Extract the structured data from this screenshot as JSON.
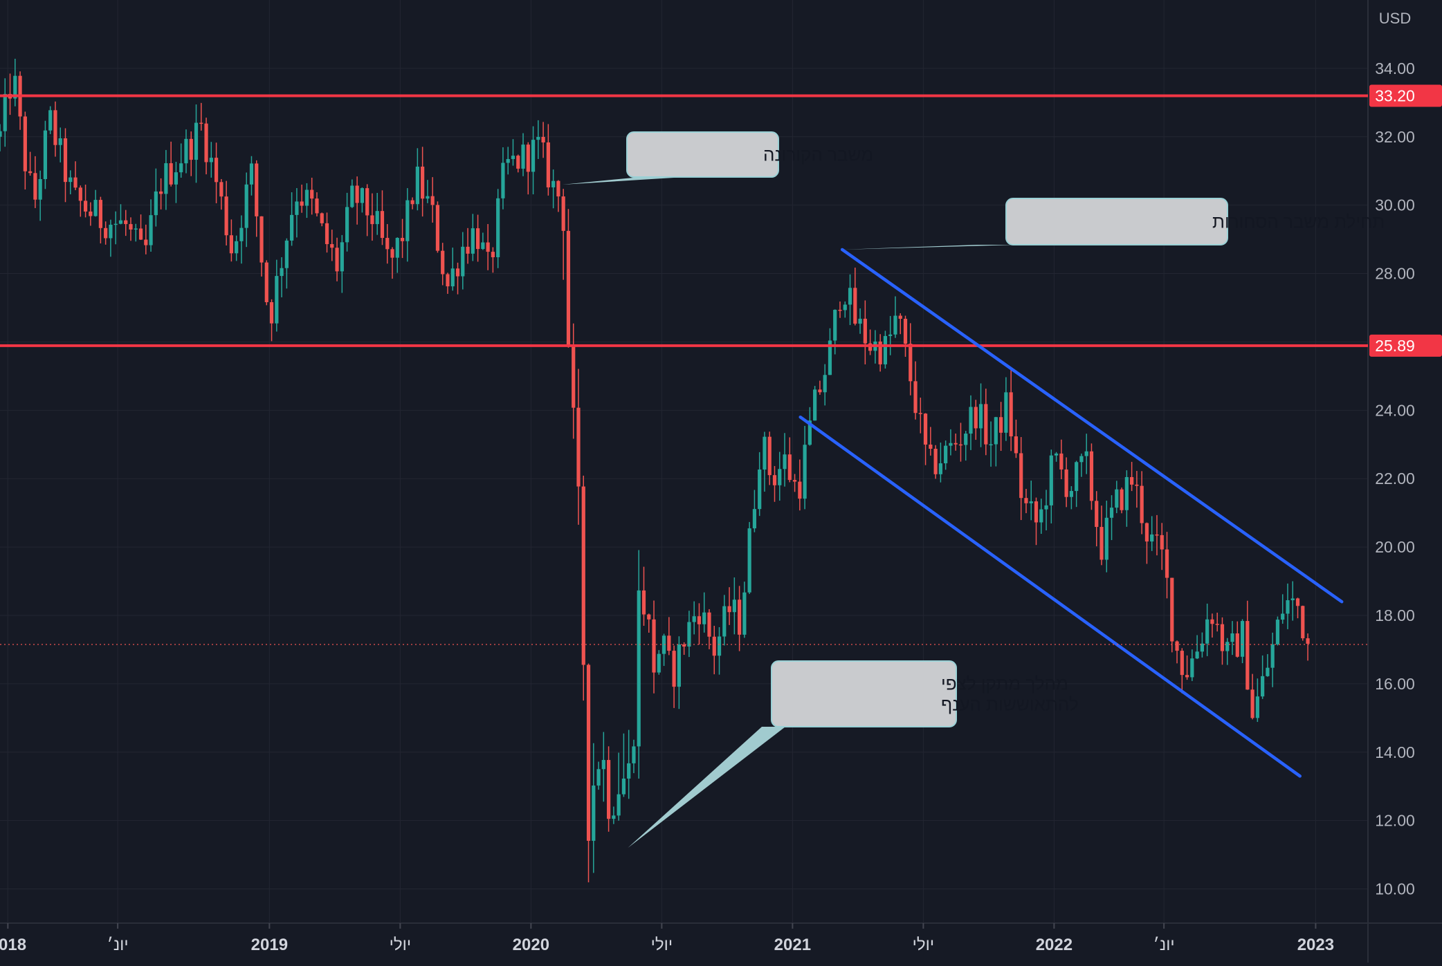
{
  "chart_data": {
    "type": "candlestick",
    "title": "",
    "currency_label": "USD",
    "y_axis": {
      "min": 9.0,
      "max": 36.0,
      "ticks": [
        {
          "value": 10,
          "label": "10.00"
        },
        {
          "value": 12,
          "label": "12.00"
        },
        {
          "value": 14,
          "label": "14.00"
        },
        {
          "value": 16,
          "label": "16.00"
        },
        {
          "value": 18,
          "label": "18.00"
        },
        {
          "value": 20,
          "label": "20.00"
        },
        {
          "value": 22,
          "label": "22.00"
        },
        {
          "value": 24,
          "label": "24.00"
        },
        {
          "value": 26,
          "label": "26.00"
        },
        {
          "value": 28,
          "label": "28.00"
        },
        {
          "value": 30,
          "label": "30.00"
        },
        {
          "value": 32,
          "label": "32.00"
        },
        {
          "value": 34,
          "label": "34.00"
        }
      ]
    },
    "x_axis": {
      "start": 2017.97,
      "end": 2023.2,
      "ticks": [
        {
          "value": 2018.0,
          "label": "2018"
        },
        {
          "value": 2018.42,
          "label": "יונ׳"
        },
        {
          "value": 2019.0,
          "label": "2019"
        },
        {
          "value": 2019.5,
          "label": "יולי"
        },
        {
          "value": 2020.0,
          "label": "2020"
        },
        {
          "value": 2020.5,
          "label": "יולי"
        },
        {
          "value": 2021.0,
          "label": "2021"
        },
        {
          "value": 2021.5,
          "label": "יולי"
        },
        {
          "value": 2022.0,
          "label": "2022"
        },
        {
          "value": 2022.42,
          "label": "יונ׳"
        },
        {
          "value": 2023.0,
          "label": "2023"
        }
      ]
    },
    "grid": true,
    "current_price": 17.15,
    "anchors": [
      [
        2017.97,
        32.0
      ],
      [
        2018.02,
        33.9
      ],
      [
        2018.06,
        31.5
      ],
      [
        2018.1,
        30.0
      ],
      [
        2018.16,
        32.5
      ],
      [
        2018.25,
        30.2
      ],
      [
        2018.35,
        29.6
      ],
      [
        2018.45,
        29.4
      ],
      [
        2018.52,
        28.4
      ],
      [
        2018.58,
        30.6
      ],
      [
        2018.68,
        31.6
      ],
      [
        2018.74,
        32.3
      ],
      [
        2018.8,
        30.6
      ],
      [
        2018.86,
        28.6
      ],
      [
        2018.93,
        31.0
      ],
      [
        2019.0,
        26.6
      ],
      [
        2019.04,
        28.2
      ],
      [
        2019.1,
        30.4
      ],
      [
        2019.16,
        30.0
      ],
      [
        2019.2,
        29.2
      ],
      [
        2019.26,
        28.2
      ],
      [
        2019.32,
        30.3
      ],
      [
        2019.4,
        29.6
      ],
      [
        2019.46,
        28.2
      ],
      [
        2019.52,
        29.4
      ],
      [
        2019.56,
        30.8
      ],
      [
        2019.62,
        29.8
      ],
      [
        2019.68,
        27.6
      ],
      [
        2019.74,
        28.8
      ],
      [
        2019.79,
        29.3
      ],
      [
        2019.84,
        28.0
      ],
      [
        2019.9,
        31.1
      ],
      [
        2019.97,
        31.4
      ],
      [
        2020.03,
        31.7
      ],
      [
        2020.08,
        30.6
      ],
      [
        2020.12,
        30.1
      ],
      [
        2020.125,
        30.1
      ],
      [
        2020.15,
        24.6
      ],
      [
        2020.18,
        21.0
      ],
      [
        2020.2,
        17.0
      ],
      [
        2020.22,
        12.4
      ],
      [
        2020.26,
        14.1
      ],
      [
        2020.3,
        12.9
      ],
      [
        2020.34,
        13.3
      ],
      [
        2020.38,
        13.2
      ],
      [
        2020.42,
        19.5
      ],
      [
        2020.46,
        16.6
      ],
      [
        2020.5,
        17.2
      ],
      [
        2020.54,
        16.2
      ],
      [
        2020.58,
        17.2
      ],
      [
        2020.64,
        18.3
      ],
      [
        2020.7,
        17.0
      ],
      [
        2020.76,
        18.2
      ],
      [
        2020.8,
        17.8
      ],
      [
        2020.84,
        20.5
      ],
      [
        2020.88,
        23.2
      ],
      [
        2020.92,
        22.0
      ],
      [
        2020.97,
        22.5
      ],
      [
        2021.02,
        21.6
      ],
      [
        2021.08,
        24.0
      ],
      [
        2021.14,
        25.6
      ],
      [
        2021.19,
        27.8
      ],
      [
        2021.24,
        26.6
      ],
      [
        2021.3,
        25.9
      ],
      [
        2021.36,
        25.8
      ],
      [
        2021.4,
        26.8
      ],
      [
        2021.46,
        24.6
      ],
      [
        2021.52,
        22.3
      ],
      [
        2021.58,
        22.7
      ],
      [
        2021.64,
        23.2
      ],
      [
        2021.7,
        24.0
      ],
      [
        2021.76,
        23.0
      ],
      [
        2021.82,
        24.2
      ],
      [
        2021.88,
        21.3
      ],
      [
        2021.94,
        20.6
      ],
      [
        2022.0,
        22.6
      ],
      [
        2022.06,
        21.7
      ],
      [
        2022.12,
        22.5
      ],
      [
        2022.18,
        20.0
      ],
      [
        2022.24,
        21.3
      ],
      [
        2022.3,
        22.0
      ],
      [
        2022.36,
        20.3
      ],
      [
        2022.42,
        19.6
      ],
      [
        2022.46,
        17.2
      ],
      [
        2022.5,
        16.3
      ],
      [
        2022.54,
        16.9
      ],
      [
        2022.6,
        18.2
      ],
      [
        2022.66,
        16.8
      ],
      [
        2022.72,
        17.4
      ],
      [
        2022.76,
        15.1
      ],
      [
        2022.82,
        16.6
      ],
      [
        2022.88,
        18.4
      ],
      [
        2022.93,
        18.3
      ],
      [
        2022.97,
        17.2
      ]
    ],
    "horizontal_lines": [
      {
        "value": 33.2,
        "label": "33.20"
      },
      {
        "value": 25.89,
        "label": "25.89"
      }
    ],
    "trend_lines": [
      {
        "x1": 2021.19,
        "y1": 28.7,
        "x2": 2023.1,
        "y2": 18.4
      },
      {
        "x1": 2021.03,
        "y1": 23.8,
        "x2": 2022.94,
        "y2": 13.3
      }
    ],
    "annotations": [
      {
        "lines": [
          "משבר הקורונה"
        ],
        "target": [
          2020.12,
          30.6
        ]
      },
      {
        "lines": [
          "תחילת משבר הסחורות"
        ],
        "target": [
          2021.19,
          28.7
        ]
      },
      {
        "lines": [
          "מהלך מתקן לצפי",
          "להתאוששות הענף"
        ],
        "target": [
          2020.37,
          11.2
        ]
      }
    ]
  }
}
